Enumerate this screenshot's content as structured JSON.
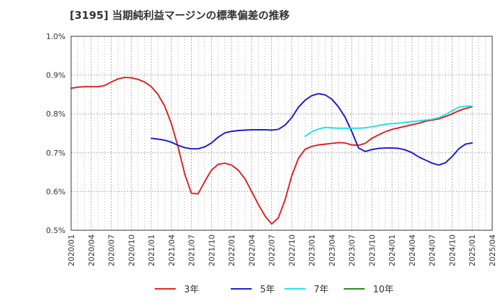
{
  "title": "[3195]  当期純利益マージンの標準偏差の推移",
  "chart_data": {
    "type": "line",
    "title": "[3195]  当期純利益マージンの標準偏差の推移",
    "xlabel": "",
    "ylabel": "",
    "ylim": [
      0.5,
      1.0
    ],
    "xlim": [
      "2020/01",
      "2025/04"
    ],
    "grid": true,
    "legend_position": "bottom",
    "y_ticks": [
      "0.5%",
      "0.6%",
      "0.7%",
      "0.8%",
      "0.9%",
      "1.0%"
    ],
    "y_tick_values": [
      0.5,
      0.6,
      0.7,
      0.8,
      0.9,
      1.0
    ],
    "x_ticks": [
      "2020/01",
      "2020/04",
      "2020/07",
      "2020/10",
      "2021/01",
      "2021/04",
      "2021/07",
      "2021/10",
      "2022/01",
      "2022/04",
      "2022/07",
      "2022/10",
      "2023/01",
      "2023/04",
      "2023/07",
      "2023/10",
      "2024/01",
      "2024/04",
      "2024/07",
      "2024/10",
      "2025/01",
      "2025/04"
    ],
    "series": [
      {
        "name": "3年",
        "color": "#dd2222",
        "x": [
          "2020/01",
          "2020/02",
          "2020/03",
          "2020/04",
          "2020/05",
          "2020/06",
          "2020/07",
          "2020/08",
          "2020/09",
          "2020/10",
          "2020/11",
          "2020/12",
          "2021/01",
          "2021/02",
          "2021/03",
          "2021/04",
          "2021/05",
          "2021/06",
          "2021/07",
          "2021/08",
          "2021/09",
          "2021/10",
          "2021/11",
          "2021/12",
          "2022/01",
          "2022/02",
          "2022/03",
          "2022/04",
          "2022/05",
          "2022/06",
          "2022/07",
          "2022/08",
          "2022/09",
          "2022/10",
          "2022/11",
          "2022/12",
          "2023/01",
          "2023/02",
          "2023/03",
          "2023/04",
          "2023/05",
          "2023/06",
          "2023/07",
          "2023/08",
          "2023/09",
          "2023/10",
          "2023/11",
          "2023/12",
          "2024/01",
          "2024/02",
          "2024/03",
          "2024/04",
          "2024/05",
          "2024/06",
          "2024/07",
          "2024/08",
          "2024/09",
          "2024/10",
          "2024/11",
          "2024/12",
          "2025/01"
        ],
        "values": [
          0.866,
          0.869,
          0.87,
          0.87,
          0.87,
          0.873,
          0.882,
          0.89,
          0.894,
          0.893,
          0.889,
          0.882,
          0.87,
          0.85,
          0.82,
          0.775,
          0.715,
          0.645,
          0.595,
          0.594,
          0.626,
          0.655,
          0.67,
          0.673,
          0.668,
          0.655,
          0.633,
          0.6,
          0.567,
          0.537,
          0.516,
          0.532,
          0.578,
          0.64,
          0.685,
          0.709,
          0.716,
          0.72,
          0.722,
          0.724,
          0.726,
          0.725,
          0.72,
          0.719,
          0.724,
          0.737,
          0.746,
          0.754,
          0.76,
          0.764,
          0.768,
          0.772,
          0.776,
          0.781,
          0.784,
          0.787,
          0.793,
          0.8,
          0.808,
          0.814,
          0.818
        ]
      },
      {
        "name": "5年",
        "color": "#1a1acc",
        "x": [
          "2021/01",
          "2021/02",
          "2021/03",
          "2021/04",
          "2021/05",
          "2021/06",
          "2021/07",
          "2021/08",
          "2021/09",
          "2021/10",
          "2021/11",
          "2021/12",
          "2022/01",
          "2022/02",
          "2022/03",
          "2022/04",
          "2022/05",
          "2022/06",
          "2022/07",
          "2022/08",
          "2022/09",
          "2022/10",
          "2022/11",
          "2022/12",
          "2023/01",
          "2023/02",
          "2023/03",
          "2023/04",
          "2023/05",
          "2023/06",
          "2023/07",
          "2023/08",
          "2023/09",
          "2023/10",
          "2023/11",
          "2023/12",
          "2024/01",
          "2024/02",
          "2024/03",
          "2024/04",
          "2024/05",
          "2024/06",
          "2024/07",
          "2024/08",
          "2024/09",
          "2024/10",
          "2024/11",
          "2024/12",
          "2025/01"
        ],
        "values": [
          0.737,
          0.735,
          0.732,
          0.727,
          0.719,
          0.713,
          0.71,
          0.71,
          0.715,
          0.725,
          0.74,
          0.751,
          0.755,
          0.757,
          0.758,
          0.759,
          0.759,
          0.759,
          0.758,
          0.76,
          0.771,
          0.79,
          0.817,
          0.835,
          0.847,
          0.852,
          0.849,
          0.838,
          0.818,
          0.791,
          0.754,
          0.712,
          0.703,
          0.708,
          0.711,
          0.712,
          0.712,
          0.711,
          0.707,
          0.7,
          0.689,
          0.681,
          0.673,
          0.668,
          0.674,
          0.69,
          0.71,
          0.722,
          0.725
        ]
      },
      {
        "name": "7年",
        "color": "#22e0e8",
        "x": [
          "2022/12",
          "2023/01",
          "2023/02",
          "2023/03",
          "2023/04",
          "2023/05",
          "2023/06",
          "2023/07",
          "2023/08",
          "2023/09",
          "2023/10",
          "2023/11",
          "2023/12",
          "2024/01",
          "2024/02",
          "2024/03",
          "2024/04",
          "2024/05",
          "2024/06",
          "2024/07",
          "2024/08",
          "2024/09",
          "2024/10",
          "2024/11",
          "2024/12",
          "2025/01"
        ],
        "values": [
          0.742,
          0.754,
          0.761,
          0.765,
          0.764,
          0.763,
          0.763,
          0.763,
          0.763,
          0.764,
          0.767,
          0.77,
          0.773,
          0.775,
          0.776,
          0.778,
          0.78,
          0.782,
          0.784,
          0.786,
          0.79,
          0.798,
          0.808,
          0.817,
          0.82,
          0.82
        ]
      },
      {
        "name": "10年",
        "color": "#228822",
        "x": [],
        "values": []
      }
    ]
  }
}
